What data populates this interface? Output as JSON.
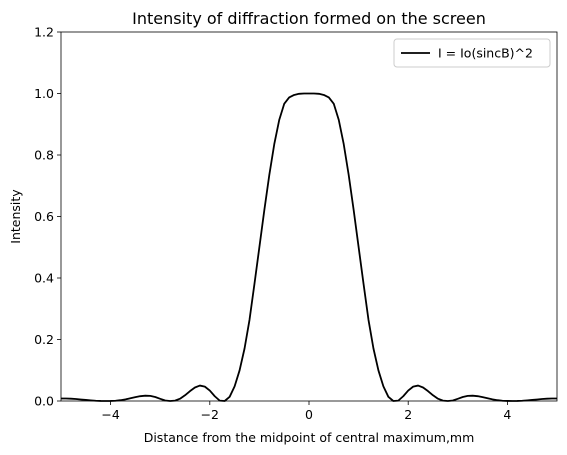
{
  "chart_data": {
    "type": "line",
    "title": "Intensity of diffraction formed on the screen",
    "xlabel": "Distance from the midpoint of central maximum,mm",
    "ylabel": "Intensity",
    "xlim": [
      -5,
      5
    ],
    "ylim": [
      0,
      1.2
    ],
    "xticks": [
      -4,
      -2,
      0,
      2,
      4
    ],
    "xtick_labels": [
      "−4",
      "−2",
      "0",
      "2",
      "4"
    ],
    "yticks": [
      0.0,
      0.2,
      0.4,
      0.6,
      0.8,
      1.0,
      1.2
    ],
    "ytick_labels": [
      "0.0",
      "0.2",
      "0.4",
      "0.6",
      "0.8",
      "1.0",
      "1.2"
    ],
    "grid": false,
    "legend_position": "top-right",
    "series": [
      {
        "name": "I = Io(sincB)^2",
        "color": "#000000",
        "x": [
          -5.0,
          -4.9,
          -4.8,
          -4.7,
          -4.6,
          -4.5,
          -4.4,
          -4.3,
          -4.2,
          -4.1,
          -4.0,
          -3.9,
          -3.8,
          -3.7,
          -3.6,
          -3.5,
          -3.4,
          -3.3,
          -3.2,
          -3.1,
          -3.0,
          -2.9,
          -2.8,
          -2.7,
          -2.6,
          -2.5,
          -2.4,
          -2.3,
          -2.2,
          -2.1,
          -2.0,
          -1.9,
          -1.8,
          -1.7,
          -1.6,
          -1.5,
          -1.4,
          -1.3,
          -1.2,
          -1.1,
          -1.0,
          -0.9,
          -0.8,
          -0.7,
          -0.6,
          -0.5,
          -0.4,
          -0.3,
          -0.2,
          -0.1,
          0.0,
          0.1,
          0.2,
          0.3,
          0.4,
          0.5,
          0.6,
          0.7,
          0.8,
          0.9,
          1.0,
          1.1,
          1.2,
          1.3,
          1.4,
          1.5,
          1.6,
          1.7,
          1.8,
          1.9,
          2.0,
          2.1,
          2.2,
          2.3,
          2.4,
          2.5,
          2.6,
          2.7,
          2.8,
          2.9,
          3.0,
          3.1,
          3.2,
          3.3,
          3.4,
          3.5,
          3.6,
          3.7,
          3.8,
          3.9,
          4.0,
          4.1,
          4.2,
          4.3,
          4.4,
          4.5,
          4.6,
          4.7,
          4.8,
          4.9,
          5.0
        ],
        "y": [
          0.0081,
          0.0081,
          0.0075,
          0.0064,
          0.0049,
          0.0034,
          0.002,
          0.0009,
          0.0002,
          0.0,
          0.0002,
          0.0009,
          0.0026,
          0.0054,
          0.0088,
          0.0125,
          0.0157,
          0.0173,
          0.0166,
          0.013,
          0.0072,
          0.0017,
          0.0,
          0.0013,
          0.0074,
          0.0186,
          0.032,
          0.0439,
          0.0502,
          0.0467,
          0.0339,
          0.0154,
          0.0012,
          0.0,
          0.0136,
          0.0474,
          0.0994,
          0.1703,
          0.2633,
          0.3804,
          0.5007,
          0.6216,
          0.7354,
          0.8354,
          0.9142,
          0.9663,
          0.9871,
          0.9953,
          0.999,
          0.9999,
          1.0,
          0.9999,
          0.999,
          0.9953,
          0.9871,
          0.9663,
          0.9142,
          0.8354,
          0.7354,
          0.6216,
          0.5007,
          0.3804,
          0.2633,
          0.1703,
          0.0994,
          0.0474,
          0.0136,
          0.0,
          0.0012,
          0.0154,
          0.0339,
          0.0467,
          0.0502,
          0.0439,
          0.032,
          0.0186,
          0.0074,
          0.0013,
          0.0,
          0.0017,
          0.0072,
          0.013,
          0.0166,
          0.0173,
          0.0157,
          0.0125,
          0.0088,
          0.0054,
          0.0026,
          0.0009,
          0.0002,
          0.0,
          0.0002,
          0.0009,
          0.002,
          0.0034,
          0.0049,
          0.0064,
          0.0075,
          0.0081,
          0.0081
        ]
      }
    ]
  }
}
